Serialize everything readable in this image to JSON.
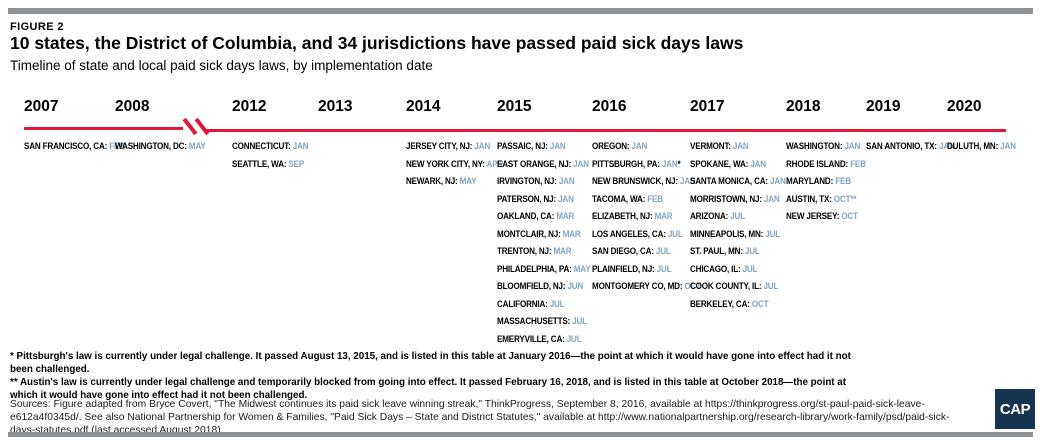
{
  "figure": {
    "label": "FIGURE 2",
    "title": "10 states, the District of Columbia, and 34 jurisdictions have passed paid sick days laws",
    "subtitle": "Timeline of state and local paid sick days laws, by implementation date"
  },
  "colors": {
    "timeline_red": "#e21836",
    "month_blue": "#7ea5c6",
    "bar_gray": "#8e9195",
    "logo_navy": "#143450"
  },
  "chart_data": {
    "type": "table",
    "title": "Timeline of state and local paid sick days laws, by implementation date",
    "timeline_years": [
      "2007",
      "2008",
      "2012",
      "2013",
      "2014",
      "2015",
      "2016",
      "2017",
      "2018",
      "2019",
      "2020"
    ],
    "break_between": [
      "2008",
      "2012"
    ],
    "columns": [
      {
        "year": "2007",
        "entries": [
          {
            "place": "SAN FRANCISCO, CA",
            "month": "FEB"
          }
        ]
      },
      {
        "year": "2008",
        "entries": [
          {
            "place": "WASHINGTON, DC",
            "month": "MAY"
          }
        ]
      },
      {
        "year": "2012",
        "entries": [
          {
            "place": "CONNECTICUT",
            "month": "JAN"
          },
          {
            "place": "SEATTLE, WA",
            "month": "SEP"
          }
        ]
      },
      {
        "year": "2013",
        "entries": []
      },
      {
        "year": "2014",
        "entries": [
          {
            "place": "JERSEY CITY, NJ",
            "month": "JAN"
          },
          {
            "place": "NEW YORK CITY, NY",
            "month": "APR"
          },
          {
            "place": "NEWARK, NJ",
            "month": "MAY"
          }
        ]
      },
      {
        "year": "2015",
        "entries": [
          {
            "place": "PASSAIC, NJ",
            "month": "JAN"
          },
          {
            "place": "EAST ORANGE, NJ",
            "month": "JAN"
          },
          {
            "place": "IRVINGTON, NJ",
            "month": "JAN"
          },
          {
            "place": "PATERSON, NJ",
            "month": "JAN"
          },
          {
            "place": "OAKLAND, CA",
            "month": "MAR"
          },
          {
            "place": "MONTCLAIR, NJ",
            "month": "MAR"
          },
          {
            "place": "TRENTON, NJ",
            "month": "MAR"
          },
          {
            "place": "PHILADELPHIA, PA",
            "month": "MAY"
          },
          {
            "place": "BLOOMFIELD, NJ",
            "month": "JUN"
          },
          {
            "place": "CALIFORNIA",
            "month": "JUL"
          },
          {
            "place": "MASSACHUSETTS",
            "month": "JUL"
          },
          {
            "place": "EMERYVILLE, CA",
            "month": "JUL"
          }
        ]
      },
      {
        "year": "2016",
        "entries": [
          {
            "place": "OREGON",
            "month": "JAN"
          },
          {
            "place": "PITTSBURGH, PA",
            "month": "JAN",
            "suffix": "*"
          },
          {
            "place": "NEW BRUNSWICK, NJ",
            "month": "JAN"
          },
          {
            "place": "TACOMA, WA",
            "month": "FEB"
          },
          {
            "place": "ELIZABETH, NJ",
            "month": "MAR"
          },
          {
            "place": "LOS ANGELES, CA",
            "month": "JUL"
          },
          {
            "place": "SAN DIEGO, CA",
            "month": "JUL"
          },
          {
            "place": "PLAINFIELD, NJ",
            "month": "JUL"
          },
          {
            "place": "MONTGOMERY CO, MD",
            "month": "OCT"
          }
        ]
      },
      {
        "year": "2017",
        "entries": [
          {
            "place": "VERMONT",
            "month": "JAN"
          },
          {
            "place": "SPOKANE, WA",
            "month": "JAN"
          },
          {
            "place": "SANTA MONICA, CA",
            "month": "JAN"
          },
          {
            "place": "MORRISTOWN, NJ",
            "month": "JAN"
          },
          {
            "place": "ARIZONA",
            "month": "JUL"
          },
          {
            "place": "MINNEAPOLIS, MN",
            "month": "JUL"
          },
          {
            "place": "ST. PAUL, MN",
            "month": "JUL"
          },
          {
            "place": "CHICAGO, IL",
            "month": "JUL"
          },
          {
            "place": "COOK COUNTY, IL",
            "month": "JUL"
          },
          {
            "place": "BERKELEY, CA",
            "month": "OCT"
          }
        ]
      },
      {
        "year": "2018",
        "entries": [
          {
            "place": "WASHINGTON",
            "month": "JAN"
          },
          {
            "place": "RHODE ISLAND",
            "month": "FEB"
          },
          {
            "place": "MARYLAND",
            "month": "FEB"
          },
          {
            "place": "AUSTIN, TX",
            "month": "OCT**"
          },
          {
            "place": "NEW JERSEY",
            "month": "OCT"
          }
        ]
      },
      {
        "year": "2019",
        "entries": [
          {
            "place": "SAN ANTONIO, TX",
            "month": "JAN"
          }
        ]
      },
      {
        "year": "2020",
        "entries": [
          {
            "place": "DULUTH, MN",
            "month": "JAN"
          }
        ]
      }
    ]
  },
  "footnotes": [
    "* Pittsburgh's law is currently under legal challenge. It passed August 13, 2015, and is listed in this table at January 2016—the point at which it would have gone into effect had it not been challenged.",
    "** Austin's law is currently under legal challenge and temporarily blocked from going into effect. It passed February 16, 2018, and is listed in this table at October 2018—the point at which it would have gone into effect had it not been challenged."
  ],
  "sources": "Sources: Figure adapted from Bryce Covert, \"The Midwest continues its paid sick leave winning streak,\" ThinkProgress, September 8, 2016, available at https://thinkprogress.org/st-paul-paid-sick-leave-e612a4f0345d/. See also National Partnership for Women & Families, \"Paid Sick Days – State and District Statutes,\" available at http://www.nationalpartnership.org/research-library/work-family/psd/paid-sick-days-statutes.pdf (last accessed August 2018).",
  "logo": {
    "text": "CAP"
  }
}
